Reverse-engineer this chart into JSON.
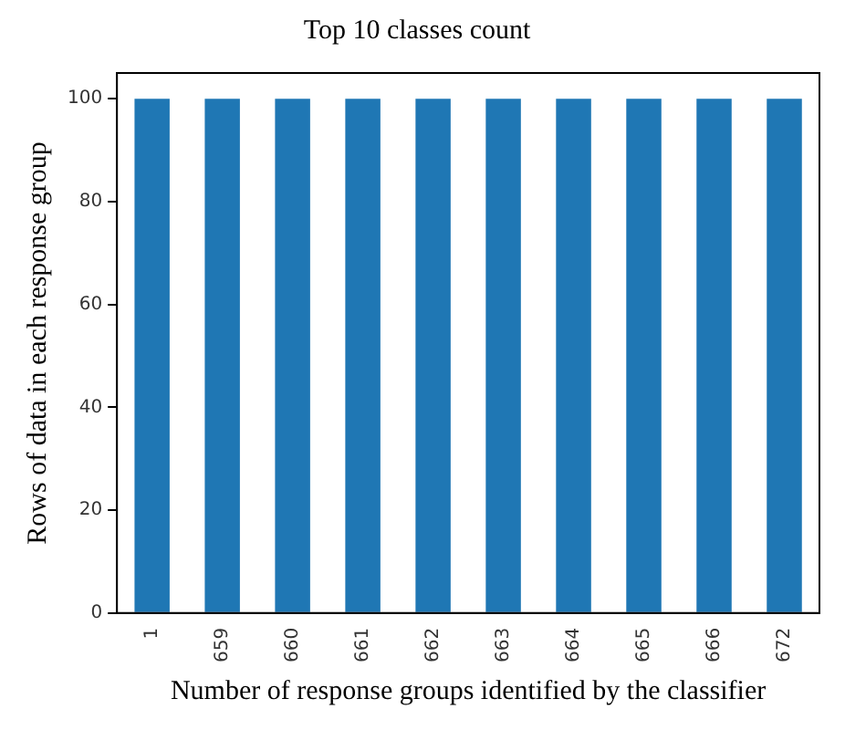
{
  "chart_data": {
    "type": "bar",
    "title": "Top 10 classes count",
    "xlabel": "Number of response groups identified by the classifier",
    "ylabel": "Rows of data in each response group",
    "categories": [
      "1",
      "659",
      "660",
      "661",
      "662",
      "663",
      "664",
      "665",
      "666",
      "672"
    ],
    "values": [
      100,
      100,
      100,
      100,
      100,
      100,
      100,
      100,
      100,
      100
    ],
    "color": "#1f77b4",
    "ylim": [
      0,
      105
    ],
    "yticks": [
      0,
      20,
      40,
      60,
      80,
      100
    ],
    "grid": false,
    "legend": false
  }
}
